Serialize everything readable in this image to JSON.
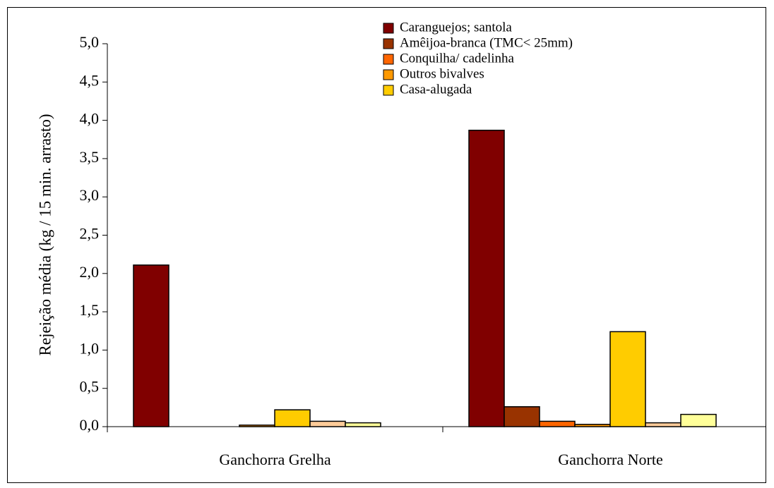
{
  "chart_data": {
    "type": "bar",
    "y_label": "Rejeição média (kg / 15 min. arrasto)",
    "categories": [
      "Ganchorra Grelha",
      "Ganchorra Norte"
    ],
    "series": [
      {
        "name": "Caranguejos; santola",
        "color": "#800000",
        "values": [
          2.11,
          3.87
        ]
      },
      {
        "name": "Amêijoa-branca (TMC< 25mm)",
        "color": "#993300",
        "values": [
          null,
          0.26
        ]
      },
      {
        "name": "Conquilha/ cadelinha",
        "color": "#ff6600",
        "values": [
          null,
          0.07
        ]
      },
      {
        "name": "Outros bivalves",
        "color": "#ff9900",
        "values": [
          0.02,
          0.03
        ]
      },
      {
        "name": "Casa-alugada",
        "color": "#ffcc00",
        "values": [
          0.22,
          1.24
        ]
      },
      {
        "color": "#ffcc99",
        "values": [
          0.07,
          0.05
        ]
      },
      {
        "color": "#ffff99",
        "values": [
          0.05,
          0.16
        ]
      }
    ],
    "ylim": [
      0,
      5
    ],
    "yticks": [
      {
        "value": 0,
        "label": "0,0"
      },
      {
        "value": 0.5,
        "label": "0,5"
      },
      {
        "value": 1,
        "label": "1,0"
      },
      {
        "value": 1.5,
        "label": "1,5"
      },
      {
        "value": 2,
        "label": "2,0"
      },
      {
        "value": 2.5,
        "label": "2,5"
      },
      {
        "value": 3,
        "label": "3,0"
      },
      {
        "value": 3.5,
        "label": "3,5"
      },
      {
        "value": 4,
        "label": "4,0"
      },
      {
        "value": 4.5,
        "label": "4,5"
      },
      {
        "value": 5,
        "label": "5,0"
      }
    ],
    "grid": false
  }
}
